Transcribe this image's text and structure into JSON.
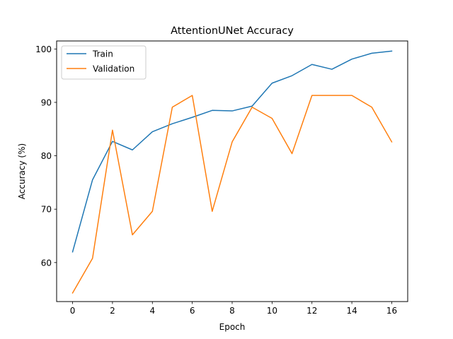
{
  "chart_data": {
    "type": "line",
    "title": "AttentionUNet Accuracy",
    "xlabel": "Epoch",
    "ylabel": "Accuracy (%)",
    "xlim": [
      -0.8,
      16.8
    ],
    "ylim": [
      52.7,
      101.5
    ],
    "xticks": [
      0,
      2,
      4,
      6,
      8,
      10,
      12,
      14,
      16
    ],
    "yticks": [
      60,
      70,
      80,
      90,
      100
    ],
    "grid": false,
    "legend_position": "top-left",
    "x": [
      0,
      1,
      2,
      3,
      4,
      5,
      6,
      7,
      8,
      9,
      10,
      11,
      12,
      13,
      14,
      15,
      16
    ],
    "series": [
      {
        "name": "Train",
        "color": "#1f77b4",
        "values": [
          62.0,
          75.5,
          82.7,
          81.1,
          84.5,
          86.0,
          87.2,
          88.5,
          88.4,
          89.3,
          93.6,
          95.0,
          97.1,
          96.2,
          98.1,
          99.2,
          99.6
        ]
      },
      {
        "name": "Validation",
        "color": "#ff7f0e",
        "values": [
          54.3,
          60.8,
          84.8,
          65.2,
          69.6,
          89.1,
          91.3,
          69.6,
          82.6,
          89.1,
          87.0,
          80.4,
          91.3,
          91.3,
          91.3,
          89.1,
          82.6
        ]
      }
    ]
  }
}
